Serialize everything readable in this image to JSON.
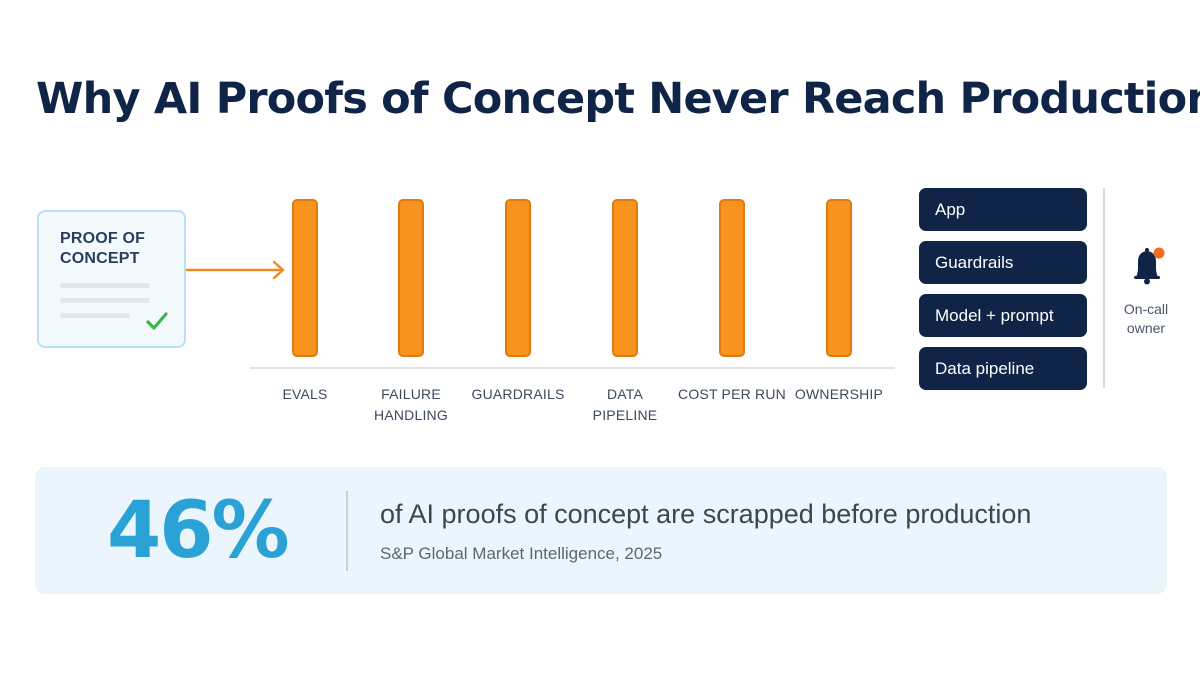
{
  "title": "Why AI Proofs of Concept Never Reach Production",
  "poc": {
    "label": "PROOF OF\nCONCEPT",
    "check_icon": "check-icon"
  },
  "hurdles": [
    {
      "label": "EVALS"
    },
    {
      "label": "FAILURE\nHANDLING"
    },
    {
      "label": "GUARDRAILS"
    },
    {
      "label": "DATA\nPIPELINE"
    },
    {
      "label": "COST PER RUN"
    },
    {
      "label": "OWNERSHIP"
    }
  ],
  "stack": {
    "items": [
      "App",
      "Guardrails",
      "Model + prompt",
      "Data pipeline"
    ]
  },
  "oncall": {
    "icon": "bell-icon",
    "label": "On-call\nowner"
  },
  "stat": {
    "value": "46%",
    "text": "of AI proofs of concept are scrapped before production",
    "source": "S&P Global Market Intelligence, 2025"
  },
  "colors": {
    "navy": "#0f2447",
    "orange": "#f7931e",
    "cyan": "#2aa2d6",
    "green": "#3cb44b",
    "panel_bg": "#eaf6fc"
  }
}
